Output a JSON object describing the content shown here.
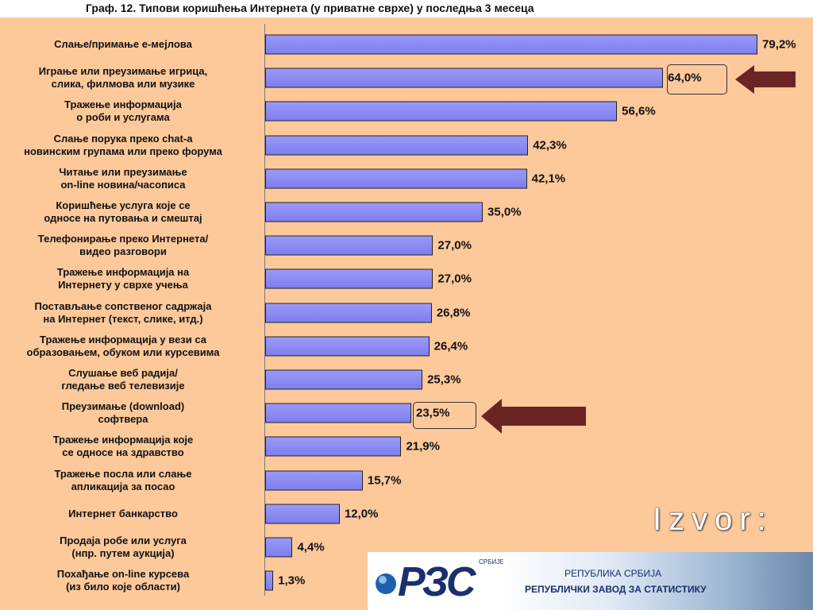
{
  "chart_data": {
    "type": "barh",
    "title": "Граф. 12. Типови коришћења Интернета (у приватне сврхе) у последња 3 месеца",
    "categories": [
      "Слање/примање е-мејлова",
      "Играње или преузимање игрица,\nслика, филмова или музике",
      "Тражење информација\nо роби и услугама",
      "Слање порука преко chat-a\nновинским групама или преко форума",
      "Читање или преузимање\non-line новина/часописа",
      "Коришћење услуга које се\nодносе на путовања и смештај",
      "Телефонирање преко Интернета/\nвидео разговори",
      "Тражење информација на\nИнтернету у сврхе учења",
      "Постављање сопственог садржаја\nна Интернет (текст, слике,  итд.)",
      "Тражење информација у вези са\nобразовањем, обуком или курсевима",
      "Слушање веб радија/\nгледање веб телевизије",
      "Преузимање (download)\nсофтвера",
      "Тражење информација које\nсе односе на здравство",
      "Тражење посла или слање\nапликација за посао",
      "Интернет банкарство",
      "Продаја робе или услуга\n(нпр. путем аукција)",
      "Похађање on-line курсева\n(из било које области)"
    ],
    "values": [
      79.2,
      64.0,
      56.6,
      42.3,
      42.1,
      35.0,
      27.0,
      27.0,
      26.8,
      26.4,
      25.3,
      23.5,
      21.9,
      15.7,
      12.0,
      4.4,
      1.3
    ],
    "value_labels": [
      "79,2%",
      "64,0%",
      "56,6%",
      "42,3%",
      "42,1%",
      "35,0%",
      "27,0%",
      "27,0%",
      "26,8%",
      "26,4%",
      "25,3%",
      "23,5%",
      "21,9%",
      "15,7%",
      "12,0%",
      "4,4%",
      "1,3%"
    ],
    "color": "#7e7eee",
    "xlim": [
      0,
      88
    ]
  },
  "source": {
    "label": "Izvor:",
    "logo": "РЗС",
    "logo_sub": "СРБИЈЕ",
    "line1": "РЕПУБЛИКА СРБИЈА",
    "line2": "РЕПУБЛИЧКИ ЗАВОД ЗА СТАТИСТИКУ"
  }
}
